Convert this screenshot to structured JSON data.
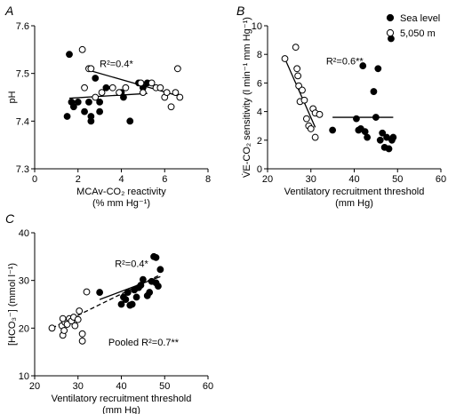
{
  "chart_data": [
    {
      "panel": "A",
      "type": "scatter",
      "xlabel_line1": "MCAv-CO₂ reactivity",
      "xlabel_line2": "(% mm Hg⁻¹)",
      "ylabel": "pH",
      "xlim": [
        0,
        8
      ],
      "ylim": [
        7.3,
        7.6
      ],
      "xticks": [
        "0",
        "2",
        "4",
        "6",
        "8"
      ],
      "yticks": [
        "7.3",
        "7.4",
        "7.5",
        "7.6"
      ],
      "annotation": "R²=0.4*",
      "series": [
        {
          "name": "Sea level",
          "marker": "filled",
          "points": [
            [
              1.6,
              7.54
            ],
            [
              1.5,
              7.41
            ],
            [
              1.7,
              7.44
            ],
            [
              1.8,
              7.43
            ],
            [
              2.0,
              7.44
            ],
            [
              2.3,
              7.42
            ],
            [
              2.5,
              7.44
            ],
            [
              2.6,
              7.41
            ],
            [
              2.6,
              7.4
            ],
            [
              3.0,
              7.44
            ],
            [
              3.0,
              7.42
            ],
            [
              3.3,
              7.47
            ],
            [
              4.0,
              7.46
            ],
            [
              4.1,
              7.45
            ],
            [
              4.4,
              7.4
            ],
            [
              4.8,
              7.48
            ],
            [
              5.0,
              7.47
            ],
            [
              5.2,
              7.48
            ],
            [
              2.8,
              7.49
            ]
          ],
          "fit": [
            [
              1.6,
              7.448
            ],
            [
              5.2,
              7.458
            ]
          ]
        },
        {
          "name": "5,050 m",
          "marker": "open",
          "points": [
            [
              2.2,
              7.55
            ],
            [
              2.5,
              7.51
            ],
            [
              2.6,
              7.51
            ],
            [
              2.3,
              7.47
            ],
            [
              2.8,
              7.45
            ],
            [
              3.1,
              7.46
            ],
            [
              3.6,
              7.47
            ],
            [
              3.9,
              7.46
            ],
            [
              4.2,
              7.47
            ],
            [
              5.0,
              7.46
            ],
            [
              5.4,
              7.48
            ],
            [
              5.6,
              7.47
            ],
            [
              5.8,
              7.47
            ],
            [
              6.0,
              7.45
            ],
            [
              6.1,
              7.46
            ],
            [
              6.3,
              7.43
            ],
            [
              6.6,
              7.51
            ],
            [
              6.7,
              7.45
            ],
            [
              6.5,
              7.46
            ],
            [
              4.9,
              7.48
            ]
          ],
          "fit": [
            [
              2.4,
              7.508
            ],
            [
              6.7,
              7.452
            ]
          ]
        }
      ]
    },
    {
      "panel": "B",
      "type": "scatter",
      "xlabel_line1": "Ventilatory recruitment threshold",
      "xlabel_line2": "(mm  Hg)",
      "ylabel": "V̇E-CO₂ sensitivity (l min⁻¹ mm Hg⁻¹)",
      "xlim": [
        20,
        60
      ],
      "ylim": [
        0,
        10
      ],
      "xticks": [
        "20",
        "30",
        "40",
        "50",
        "60"
      ],
      "yticks": [
        "0",
        "2",
        "4",
        "6",
        "8",
        "10"
      ],
      "annotation": "R²=0.6**",
      "legend": [
        {
          "label": "Sea level",
          "marker": "filled"
        },
        {
          "label": "5,050 m",
          "marker": "open"
        }
      ],
      "series": [
        {
          "name": "Sea level",
          "marker": "filled",
          "points": [
            [
              35,
              2.7
            ],
            [
              40.5,
              3.5
            ],
            [
              41,
              2.7
            ],
            [
              41.5,
              2.8
            ],
            [
              42,
              7.2
            ],
            [
              42.5,
              2.6
            ],
            [
              43,
              2.2
            ],
            [
              44.5,
              5.4
            ],
            [
              45,
              3.6
            ],
            [
              45.5,
              7.0
            ],
            [
              46,
              2.0
            ],
            [
              46.5,
              2.5
            ],
            [
              47,
              1.5
            ],
            [
              47.5,
              2.2
            ],
            [
              48,
              1.4
            ],
            [
              48.5,
              9.1
            ],
            [
              48.7,
              2.0
            ],
            [
              49,
              2.2
            ]
          ],
          "fit": [
            [
              35,
              3.6
            ],
            [
              49,
              3.6
            ]
          ]
        },
        {
          "name": "5,050 m",
          "marker": "open",
          "points": [
            [
              24,
              7.7
            ],
            [
              26.5,
              8.5
            ],
            [
              26.8,
              7.0
            ],
            [
              27,
              6.5
            ],
            [
              27.2,
              5.8
            ],
            [
              27.5,
              4.7
            ],
            [
              28,
              5.5
            ],
            [
              28.5,
              4.8
            ],
            [
              29,
              3.5
            ],
            [
              29.5,
              3.0
            ],
            [
              30,
              2.8
            ],
            [
              30.5,
              4.2
            ],
            [
              31,
              3.9
            ],
            [
              31,
              2.2
            ],
            [
              32,
              3.8
            ]
          ],
          "fit": [
            [
              24,
              7.7
            ],
            [
              31,
              2.9
            ]
          ]
        }
      ]
    },
    {
      "panel": "C",
      "type": "scatter",
      "xlabel_line1": "Ventilatory recruitment threshold",
      "xlabel_line2": "(mm  Hg)",
      "ylabel": "[HCO₃⁻] (mmol l⁻¹)",
      "xlim": [
        20,
        60
      ],
      "ylim": [
        10,
        40
      ],
      "xticks": [
        "20",
        "30",
        "40",
        "50",
        "60"
      ],
      "yticks": [
        "10",
        "20",
        "30",
        "40"
      ],
      "annotation_sea": "R²=0.4*",
      "annotation_pooled": "Pooled R²=0.7**",
      "series": [
        {
          "name": "Sea level",
          "marker": "filled",
          "points": [
            [
              35,
              27.5
            ],
            [
              40,
              25.0
            ],
            [
              40.5,
              26.5
            ],
            [
              41,
              26.0
            ],
            [
              41.5,
              27.5
            ],
            [
              42,
              24.8
            ],
            [
              42.5,
              25.0
            ],
            [
              43,
              28.0
            ],
            [
              43.5,
              26.5
            ],
            [
              44,
              28.5
            ],
            [
              44.5,
              29.0
            ],
            [
              45,
              30.2
            ],
            [
              46,
              26.8
            ],
            [
              46.5,
              27.5
            ],
            [
              47,
              29.8
            ],
            [
              47.5,
              35.0
            ],
            [
              48,
              34.8
            ],
            [
              48,
              29.5
            ],
            [
              48.5,
              28.8
            ],
            [
              49,
              32.3
            ]
          ],
          "fit": [
            [
              35,
              26.0
            ],
            [
              49,
              30.8
            ]
          ]
        },
        {
          "name": "5,050 m",
          "marker": "open",
          "points": [
            [
              24,
              20.0
            ],
            [
              26.3,
              20.5
            ],
            [
              26.5,
              18.5
            ],
            [
              26.8,
              19.5
            ],
            [
              27,
              21.2
            ],
            [
              27.5,
              20.8
            ],
            [
              28,
              22.0
            ],
            [
              28.5,
              21.5
            ],
            [
              29,
              22.3
            ],
            [
              29.3,
              20.5
            ],
            [
              30,
              21.8
            ],
            [
              30.3,
              23.6
            ],
            [
              31,
              18.8
            ],
            [
              31,
              17.3
            ],
            [
              32,
              27.6
            ],
            [
              26.5,
              22.0
            ]
          ],
          "fit": [
            [
              24,
              20.0
            ],
            [
              49,
              31.2
            ]
          ]
        }
      ]
    }
  ]
}
